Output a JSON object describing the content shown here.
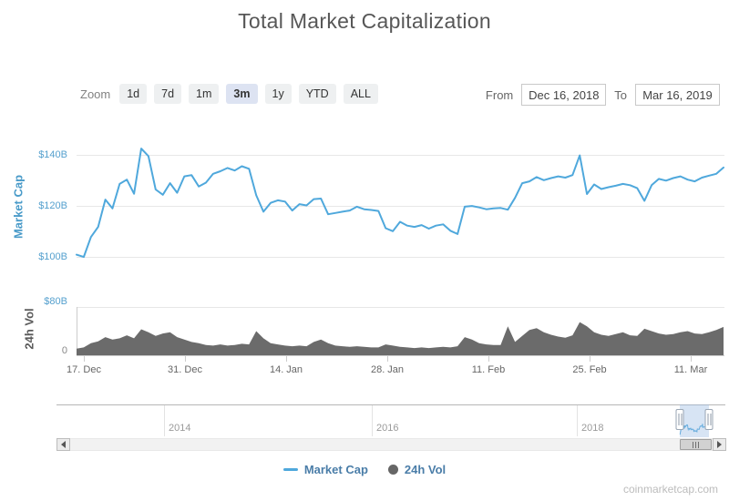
{
  "title": "Total Market Capitalization",
  "watermark": "coinmarketcap.com",
  "toolbar": {
    "zoom_label": "Zoom",
    "buttons": [
      "1d",
      "7d",
      "1m",
      "3m",
      "1y",
      "YTD",
      "ALL"
    ],
    "selected": "3m",
    "from_label": "From",
    "from_value": "Dec 16, 2018",
    "to_label": "To",
    "to_value": "Mar 16, 2019"
  },
  "main_axis": {
    "title": "Market Cap",
    "ticks": [
      "$140B",
      "$120B",
      "$100B"
    ]
  },
  "volume_axis": {
    "title": "24h Vol",
    "ticks": [
      "$80B",
      "0"
    ]
  },
  "x_axis": {
    "ticks": [
      "17. Dec",
      "31. Dec",
      "14. Jan",
      "28. Jan",
      "11. Feb",
      "25. Feb",
      "11. Mar"
    ]
  },
  "navigator": {
    "years": [
      "2014",
      "2016",
      "2018"
    ]
  },
  "legend": [
    {
      "label": "Market Cap",
      "marker": "line",
      "color": "#4fa8dc"
    },
    {
      "label": "24h Vol",
      "marker": "circle",
      "color": "#666666"
    }
  ],
  "colors": {
    "grid": "#e7e7e7",
    "axis_line": "#cccccc",
    "blue_axis_text": "#55a0ce"
  },
  "chart_data": [
    {
      "type": "line",
      "name": "Market Cap",
      "color": "#4fa8dc",
      "unit": "USD billions",
      "x_start": "2018-12-16",
      "x_end": "2019-03-16",
      "interval": "daily",
      "ylabel": "Market Cap",
      "yticks": [
        "$100B",
        "$120B",
        "$140B"
      ],
      "ylim": [
        95,
        148
      ],
      "grid": true,
      "values": [
        100.5,
        99.6,
        107.5,
        111.5,
        122.3,
        118.8,
        128.5,
        130.2,
        124.6,
        142.5,
        139.5,
        126.3,
        124.2,
        128.8,
        125.0,
        131.5,
        132.0,
        127.5,
        129.0,
        132.5,
        133.5,
        134.8,
        133.8,
        135.5,
        134.5,
        124.0,
        117.5,
        121.0,
        122.0,
        121.5,
        118.0,
        120.5,
        120.0,
        122.5,
        122.7,
        116.5,
        117.0,
        117.5,
        118.0,
        119.5,
        118.5,
        118.2,
        117.8,
        111.0,
        109.8,
        113.5,
        112.0,
        111.5,
        112.2,
        110.8,
        112.0,
        112.5,
        110.0,
        108.7,
        119.5,
        119.8,
        119.2,
        118.5,
        118.8,
        119.0,
        118.3,
        123.0,
        128.8,
        129.5,
        131.2,
        130.0,
        130.8,
        131.5,
        131.0,
        132.0,
        139.8,
        124.5,
        128.3,
        126.5,
        127.2,
        127.8,
        128.5,
        128.0,
        126.8,
        121.8,
        128.0,
        130.5,
        129.8,
        130.8,
        131.5,
        130.2,
        129.5,
        131.0,
        131.8,
        132.5,
        135.0
      ]
    },
    {
      "type": "area",
      "name": "24h Vol",
      "color": "#6b6b6b",
      "unit": "USD billions",
      "x_start": "2018-12-16",
      "x_end": "2019-03-16",
      "interval": "daily",
      "ylabel": "24h Vol",
      "yticks": [
        "0",
        "$80B"
      ],
      "ylim": [
        0,
        90
      ],
      "values": [
        11,
        13,
        20,
        23,
        30,
        26,
        28,
        33,
        28,
        43,
        38,
        32,
        36,
        38,
        30,
        26,
        22,
        20,
        17,
        16,
        18,
        16,
        17,
        19,
        18,
        40,
        28,
        20,
        18,
        16,
        15,
        16,
        15,
        22,
        26,
        20,
        16,
        15,
        14,
        15,
        14,
        13,
        13,
        18,
        16,
        14,
        13,
        12,
        13,
        12,
        13,
        14,
        13,
        15,
        30,
        26,
        20,
        18,
        17,
        17,
        48,
        22,
        32,
        42,
        45,
        38,
        34,
        31,
        29,
        33,
        55,
        48,
        38,
        34,
        32,
        35,
        38,
        33,
        32,
        44,
        40,
        36,
        34,
        35,
        38,
        40,
        36,
        35,
        38,
        42,
        47
      ]
    }
  ]
}
